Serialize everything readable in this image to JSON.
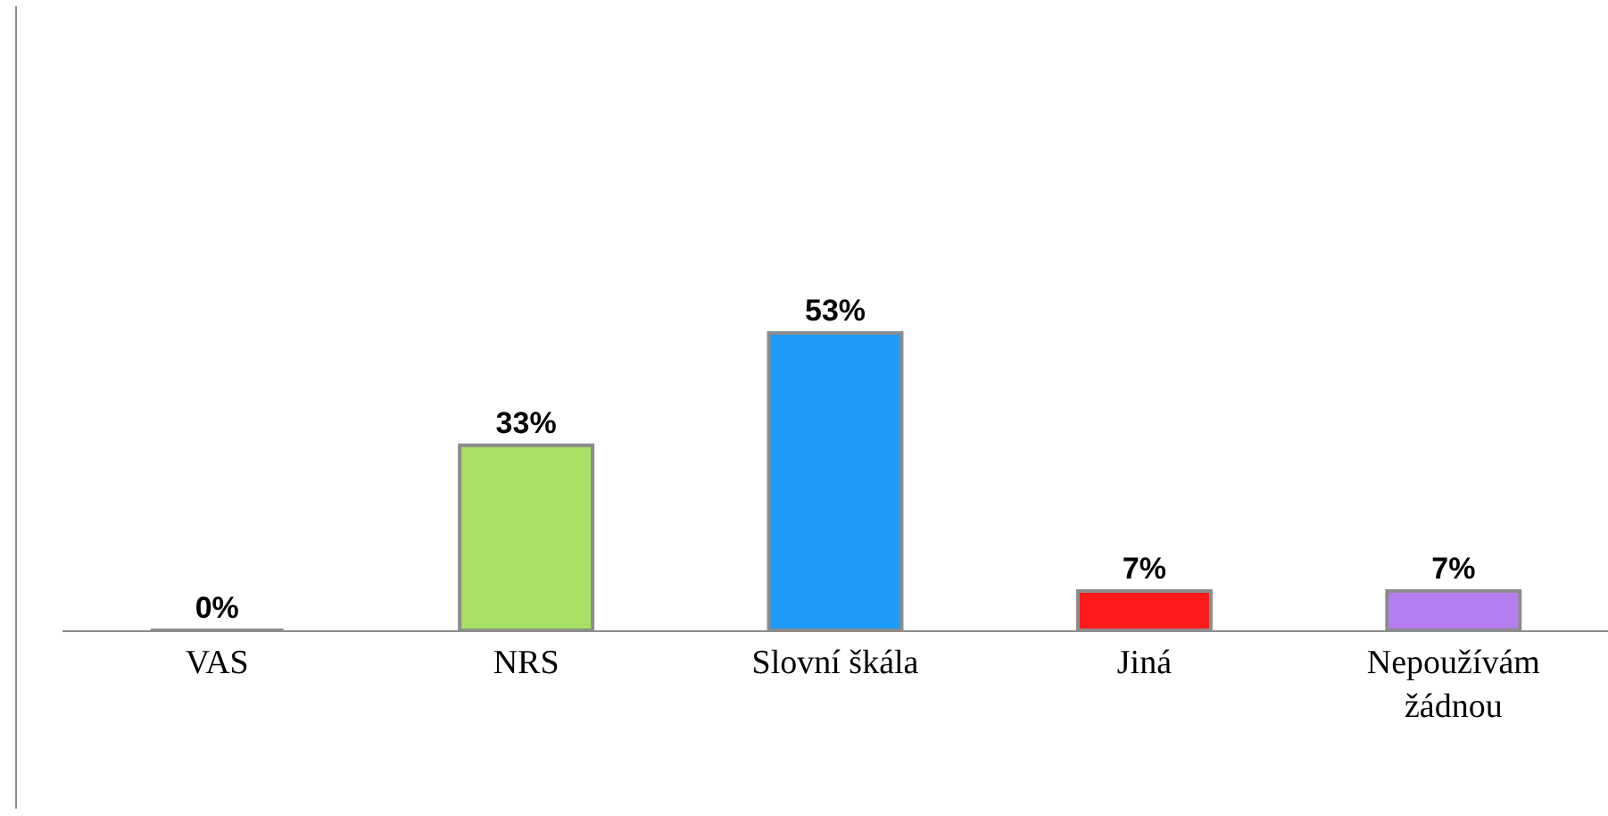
{
  "chart_data": {
    "type": "bar",
    "categories": [
      "VAS",
      "NRS",
      "Slovní škála",
      "Jiná",
      "Nepoužívám žádnou"
    ],
    "values": [
      0,
      33,
      53,
      7,
      7
    ],
    "colors": [
      "#8c8c8c",
      "#a8e063",
      "#1e9bfa",
      "#ff1a1a",
      "#b57ef0"
    ],
    "data_labels": true,
    "value_labels": [
      "0%",
      "33%",
      "53%",
      "7%",
      "7%"
    ],
    "legend": false
  }
}
